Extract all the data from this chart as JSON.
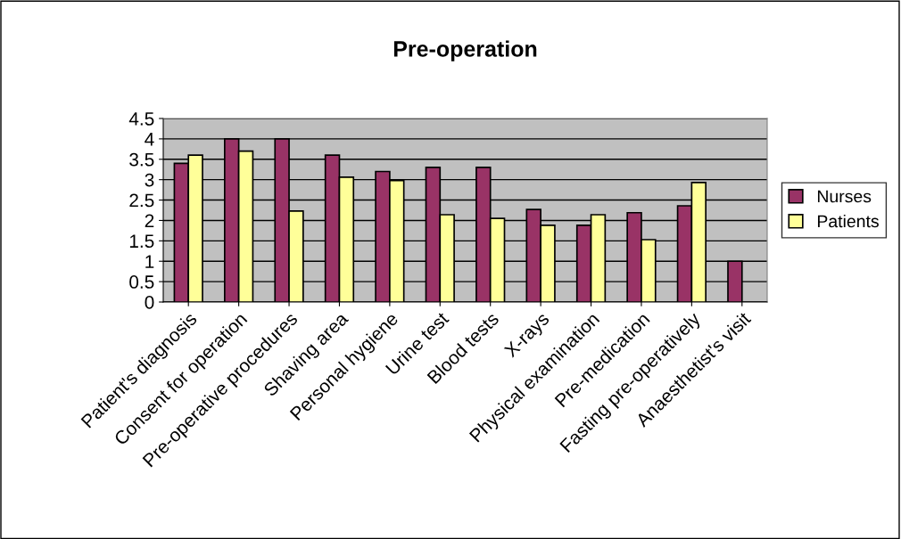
{
  "chart_data": {
    "type": "bar",
    "title": "Pre-operation",
    "categories": [
      "Patient's diagnosis",
      "Consent for operation",
      "Pre-operative procedures",
      "Shaving area",
      "Personal hygiene",
      "Urine test",
      "Blood tests",
      "X-rays",
      "Physical examination",
      "Pre-medication",
      "Fasting pre-operatively",
      "Anaesthetist's visit"
    ],
    "series": [
      {
        "name": "Nurses",
        "color": "#993366",
        "values": [
          3.4,
          4.0,
          4.0,
          3.6,
          3.2,
          3.3,
          3.3,
          2.27,
          1.88,
          2.19,
          2.36,
          1.0
        ]
      },
      {
        "name": "Patients",
        "color": "#ffff99",
        "values": [
          3.6,
          3.7,
          2.23,
          3.06,
          2.98,
          2.14,
          2.05,
          1.88,
          2.14,
          1.53,
          2.93,
          null
        ]
      }
    ],
    "ylim": [
      0,
      4.5
    ],
    "yticks": [
      0,
      0.5,
      1,
      1.5,
      2,
      2.5,
      3,
      3.5,
      4,
      4.5
    ],
    "grid": "y",
    "legend": "right"
  }
}
